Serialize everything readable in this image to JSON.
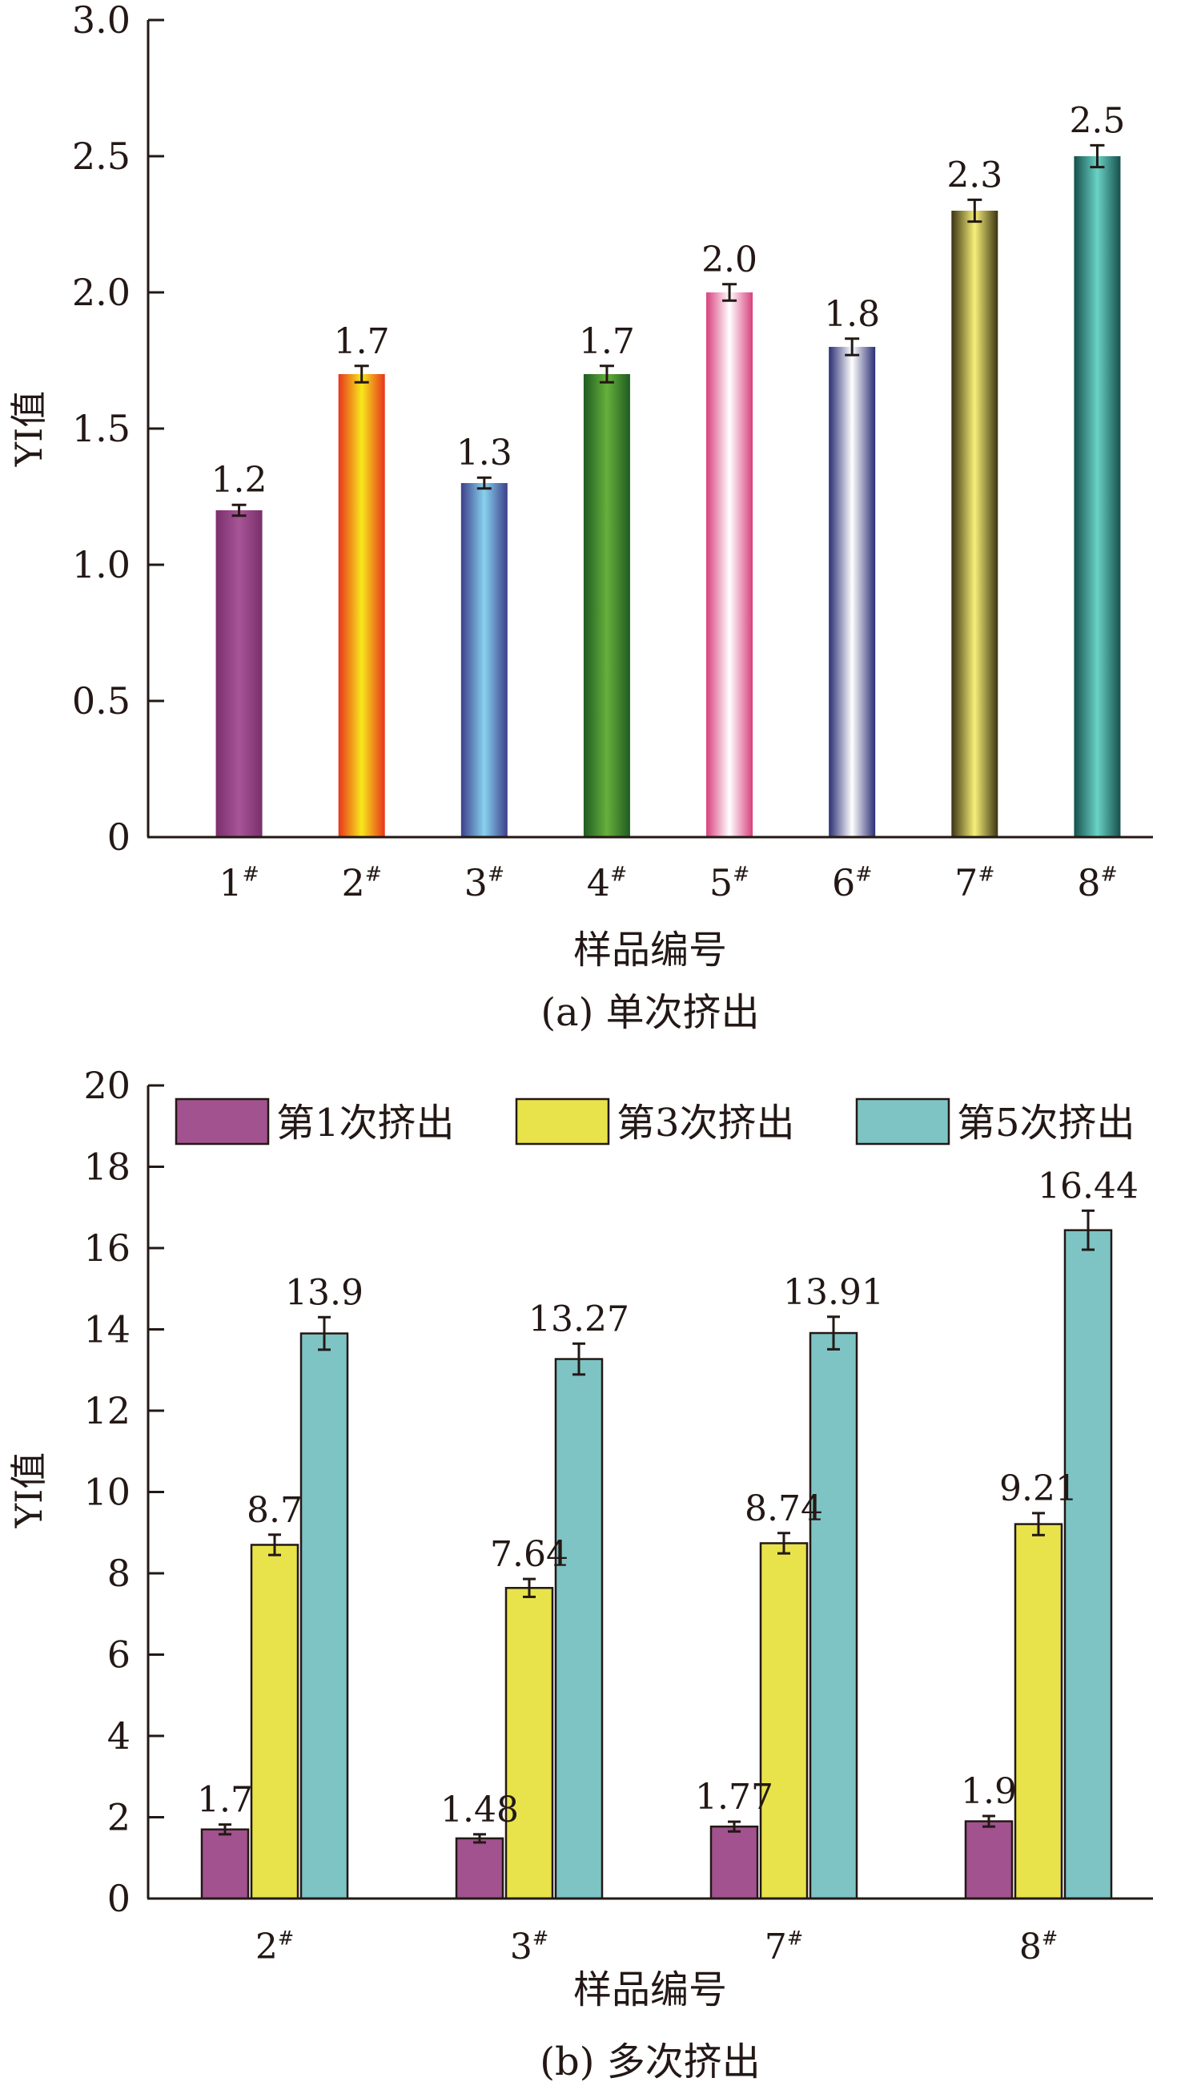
{
  "chart_data": [
    {
      "type": "bar",
      "panel_label": "(a) 单次挤出",
      "xlabel": "样品编号",
      "ylabel": "YI值",
      "ylim": [
        0,
        3.0
      ],
      "yticks": [
        "0",
        "0.5",
        "1.0",
        "1.5",
        "2.0",
        "2.5",
        "3.0"
      ],
      "categories": [
        "1#",
        "2#",
        "3#",
        "4#",
        "5#",
        "6#",
        "7#",
        "8#"
      ],
      "values": [
        1.2,
        1.7,
        1.3,
        1.7,
        2.0,
        1.8,
        2.3,
        2.5
      ],
      "value_labels": [
        "1.2",
        "1.7",
        "1.3",
        "1.7",
        "2.0",
        "1.8",
        "2.3",
        "2.5"
      ],
      "errors": [
        0.02,
        0.03,
        0.02,
        0.03,
        0.03,
        0.03,
        0.04,
        0.04
      ],
      "bar_colors": [
        [
          "#7a2f6c",
          "#a75596",
          "#7a2f6c"
        ],
        [
          "#e7341d",
          "#f7e81b",
          "#e7341d"
        ],
        [
          "#3d3f8a",
          "#87d2ee",
          "#3d3f8a"
        ],
        [
          "#1f5b21",
          "#66b03c",
          "#1f5b21"
        ],
        [
          "#d8407e",
          "#ffffff",
          "#d8407e"
        ],
        [
          "#2b2f74",
          "#ffffff",
          "#2b2f74"
        ],
        [
          "#3b3312",
          "#f7f079",
          "#3b3312"
        ],
        [
          "#164f4c",
          "#69d3c5",
          "#164f4c"
        ]
      ]
    },
    {
      "type": "bar",
      "panel_label": "(b) 多次挤出",
      "xlabel": "样品编号",
      "ylabel": "YI值",
      "ylim": [
        0,
        20
      ],
      "yticks": [
        "0",
        "2",
        "4",
        "6",
        "8",
        "10",
        "12",
        "14",
        "16",
        "18",
        "20"
      ],
      "categories": [
        "2#",
        "3#",
        "7#",
        "8#"
      ],
      "legend_position": "top",
      "series": [
        {
          "name": "第1次挤出",
          "color": "#a1528f",
          "values": [
            1.7,
            1.48,
            1.77,
            1.9
          ],
          "value_labels": [
            "1.7",
            "1.48",
            "1.77",
            "1.9"
          ],
          "errors": [
            0.12,
            0.1,
            0.12,
            0.13
          ]
        },
        {
          "name": "第3次挤出",
          "color": "#e8e34b",
          "values": [
            8.7,
            7.64,
            8.74,
            9.21
          ],
          "value_labels": [
            "8.7",
            "7.64",
            "8.74",
            "9.21"
          ],
          "errors": [
            0.25,
            0.22,
            0.25,
            0.27
          ]
        },
        {
          "name": "第5次挤出",
          "color": "#7ec4c4",
          "values": [
            13.9,
            13.27,
            13.91,
            16.44
          ],
          "value_labels": [
            "13.9",
            "13.27",
            "13.91",
            "16.44"
          ],
          "errors": [
            0.4,
            0.38,
            0.4,
            0.48
          ]
        }
      ]
    }
  ]
}
